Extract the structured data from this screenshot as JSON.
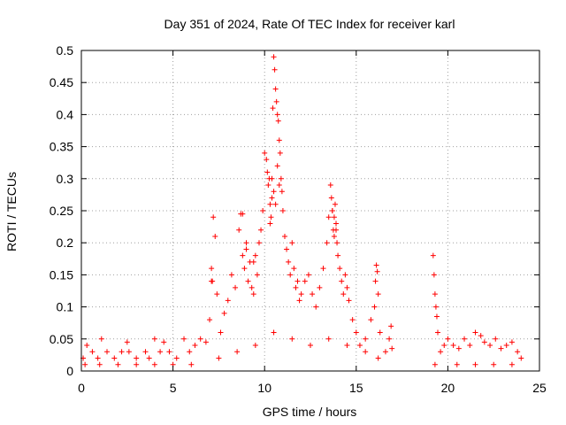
{
  "chart_data": {
    "type": "scatter",
    "title": "Day 351 of 2024, Rate Of TEC Index for receiver karl",
    "xlabel": "GPS time / hours",
    "ylabel": "ROTI / TECUs",
    "xlim": [
      0,
      25
    ],
    "ylim": [
      0,
      0.5
    ],
    "xticks": [
      0,
      5,
      10,
      15,
      20,
      25
    ],
    "xtick_labels": [
      "0",
      "5",
      "10",
      "15",
      "20",
      "25"
    ],
    "yticks": [
      0,
      0.05,
      0.1,
      0.15,
      0.2,
      0.25,
      0.3,
      0.35,
      0.4,
      0.45,
      0.5
    ],
    "ytick_labels": [
      "0",
      "0.05",
      "0.1",
      "0.15",
      "0.2",
      "0.25",
      "0.3",
      "0.35",
      "0.4",
      "0.45",
      "0.5"
    ],
    "grid": true,
    "marker": "+",
    "marker_color": "#ff0000",
    "series": [
      {
        "x": [
          0.1,
          0.3,
          0.6,
          0.9,
          1.1,
          1.4,
          1.8,
          2.2,
          2.5,
          2.6,
          3.0,
          3.5,
          3.7,
          4.0,
          4.3,
          4.5,
          4.8,
          5.2,
          5.6,
          5.9,
          6.2,
          6.5,
          6.8,
          7.0,
          7.1,
          7.2,
          7.3,
          7.4,
          7.6,
          7.8,
          8.0,
          8.2,
          8.4,
          8.6,
          8.7,
          8.8,
          8.9,
          9.0,
          9.1,
          9.2,
          9.3,
          9.4,
          9.5,
          9.6,
          9.7,
          9.8,
          9.9,
          10.0,
          10.1,
          10.15,
          10.2,
          10.25,
          10.3,
          10.35,
          10.4,
          10.45,
          10.5,
          10.55,
          10.6,
          10.65,
          10.7,
          10.75,
          10.8,
          10.85,
          10.9,
          10.95,
          11.0,
          11.1,
          11.2,
          11.3,
          11.4,
          11.5,
          11.6,
          11.7,
          11.8,
          11.9,
          12.0,
          12.2,
          12.4,
          12.6,
          12.8,
          13.0,
          13.2,
          13.4,
          13.5,
          13.6,
          13.65,
          13.7,
          13.75,
          13.8,
          13.85,
          13.9,
          13.95,
          14.0,
          14.1,
          14.2,
          14.3,
          14.4,
          14.5,
          14.6,
          14.8,
          15.0,
          15.2,
          15.5,
          15.8,
          16.0,
          16.05,
          16.1,
          16.15,
          16.2,
          16.3,
          16.6,
          16.8,
          16.9,
          16.95,
          19.2,
          19.25,
          19.3,
          19.35,
          19.4,
          19.45,
          19.6,
          19.8,
          20.0,
          20.3,
          20.6,
          20.9,
          21.2,
          21.5,
          21.8,
          22.0,
          22.3,
          22.6,
          22.9,
          23.2,
          23.5,
          23.8,
          24.0,
          0.2,
          1.0,
          2.0,
          3.0,
          4.0,
          5.0,
          6.0,
          7.5,
          8.5,
          9.5,
          10.5,
          11.5,
          12.5,
          13.5,
          14.5,
          15.5,
          16.2,
          19.3,
          20.5,
          21.5,
          22.5,
          23.5,
          10.3,
          10.4,
          10.5,
          10.6,
          10.7,
          10.8,
          13.7,
          13.8,
          13.9,
          9.0,
          9.4,
          8.8,
          7.1,
          7.15
        ],
        "y": [
          0.02,
          0.04,
          0.03,
          0.02,
          0.05,
          0.03,
          0.02,
          0.03,
          0.045,
          0.03,
          0.02,
          0.03,
          0.02,
          0.05,
          0.03,
          0.045,
          0.03,
          0.02,
          0.05,
          0.03,
          0.04,
          0.05,
          0.045,
          0.08,
          0.14,
          0.24,
          0.21,
          0.12,
          0.06,
          0.09,
          0.11,
          0.15,
          0.13,
          0.22,
          0.245,
          0.18,
          0.16,
          0.2,
          0.14,
          0.17,
          0.13,
          0.12,
          0.18,
          0.15,
          0.2,
          0.22,
          0.25,
          0.34,
          0.33,
          0.31,
          0.29,
          0.3,
          0.26,
          0.24,
          0.27,
          0.41,
          0.49,
          0.47,
          0.44,
          0.42,
          0.4,
          0.39,
          0.36,
          0.34,
          0.3,
          0.28,
          0.25,
          0.21,
          0.19,
          0.17,
          0.15,
          0.2,
          0.16,
          0.13,
          0.14,
          0.11,
          0.12,
          0.14,
          0.15,
          0.12,
          0.1,
          0.13,
          0.16,
          0.2,
          0.24,
          0.29,
          0.27,
          0.25,
          0.22,
          0.21,
          0.26,
          0.23,
          0.2,
          0.18,
          0.16,
          0.14,
          0.12,
          0.15,
          0.13,
          0.11,
          0.08,
          0.06,
          0.04,
          0.05,
          0.08,
          0.1,
          0.14,
          0.165,
          0.155,
          0.12,
          0.06,
          0.03,
          0.05,
          0.07,
          0.035,
          0.18,
          0.15,
          0.12,
          0.1,
          0.085,
          0.06,
          0.03,
          0.04,
          0.05,
          0.04,
          0.035,
          0.05,
          0.04,
          0.06,
          0.055,
          0.045,
          0.04,
          0.05,
          0.035,
          0.04,
          0.045,
          0.03,
          0.02,
          0.01,
          0.01,
          0.01,
          0.01,
          0.01,
          0.01,
          0.01,
          0.02,
          0.03,
          0.04,
          0.06,
          0.05,
          0.04,
          0.05,
          0.04,
          0.03,
          0.02,
          0.01,
          0.01,
          0.01,
          0.01,
          0.01,
          0.23,
          0.3,
          0.28,
          0.26,
          0.32,
          0.29,
          0.25,
          0.24,
          0.22,
          0.19,
          0.17,
          0.245,
          0.16,
          0.14
        ]
      }
    ]
  }
}
